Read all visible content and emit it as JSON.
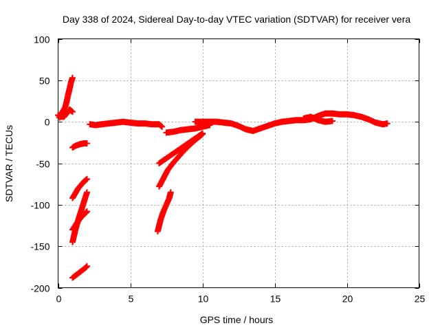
{
  "chart_data": {
    "type": "scatter",
    "title": "Day 338 of 2024, Sidereal Day-to-day VTEC variation (SDTVAR) for receiver vera",
    "xlabel": "GPS time / hours",
    "ylabel": "SDTVAR / TECUs",
    "xlim": [
      0,
      25
    ],
    "ylim": [
      -200,
      100
    ],
    "xticks": [
      0,
      5,
      10,
      15,
      20,
      25
    ],
    "yticks": [
      -200,
      -150,
      -100,
      -50,
      0,
      50,
      100
    ],
    "grid": true,
    "marker": "+",
    "color": "#ff0000",
    "series": [
      {
        "name": "arc-main",
        "x": [
          2.2,
          2.6,
          3.0,
          3.5,
          4.0,
          4.5,
          5.0,
          5.5,
          6.0,
          6.5,
          7.0,
          7.2
        ],
        "y": [
          -3,
          -4,
          -3,
          -2,
          -1,
          0,
          -1,
          -2,
          -2,
          -3,
          -3,
          -6
        ]
      },
      {
        "name": "arc-mid",
        "x": [
          9.5,
          10.0,
          10.5,
          11.0,
          11.5,
          12.0,
          12.5,
          13.0,
          13.5,
          14.0,
          14.5,
          15.0
        ],
        "y": [
          0,
          0,
          0,
          0,
          -1,
          -2,
          -5,
          -9,
          -11,
          -8,
          -5,
          -2
        ]
      },
      {
        "name": "arc-late",
        "x": [
          15.0,
          15.5,
          16.0,
          16.5,
          17.0,
          17.5,
          18.0,
          18.5,
          19.0,
          19.5,
          20.0,
          20.5,
          21.0,
          21.5,
          22.0,
          22.5,
          22.8
        ],
        "y": [
          -2,
          0,
          1,
          2,
          2,
          3,
          7,
          10,
          10,
          9,
          9,
          8,
          6,
          3,
          -1,
          -3,
          -2
        ]
      },
      {
        "name": "arc-dip",
        "x": [
          17.0,
          17.5,
          18.0,
          18.5,
          19.0
        ],
        "y": [
          4,
          6,
          2,
          0,
          1
        ]
      },
      {
        "name": "arc-rise",
        "x": [
          7.5,
          8.0,
          8.5,
          9.0,
          9.5,
          10.0,
          10.5
        ],
        "y": [
          -13,
          -12,
          -10,
          -9,
          -8,
          -6,
          -4
        ]
      },
      {
        "name": "arc-start",
        "x": [
          0.0,
          0.2,
          0.4,
          0.6,
          0.8,
          1.0
        ],
        "y": [
          8,
          6,
          6,
          10,
          15,
          12
        ]
      },
      {
        "name": "arc-spike",
        "x": [
          0.1,
          0.3,
          0.5,
          0.6,
          0.7,
          0.8,
          0.9,
          1.0
        ],
        "y": [
          5,
          12,
          18,
          25,
          33,
          40,
          48,
          53
        ]
      },
      {
        "name": "arc-a",
        "x": [
          1.0,
          1.2,
          1.5,
          1.8,
          2.0
        ],
        "y": [
          -31,
          -29,
          -27,
          -26,
          -26
        ]
      },
      {
        "name": "arc-b",
        "x": [
          1.0,
          1.2,
          1.4,
          1.6,
          1.8,
          2.0
        ],
        "y": [
          -92,
          -86,
          -80,
          -76,
          -72,
          -69
        ]
      },
      {
        "name": "arc-c",
        "x": [
          1.0,
          1.2,
          1.4,
          1.6,
          1.8,
          2.0
        ],
        "y": [
          -145,
          -130,
          -118,
          -107,
          -96,
          -85
        ]
      },
      {
        "name": "arc-d",
        "x": [
          1.0,
          1.3,
          1.6,
          1.9,
          2.0
        ],
        "y": [
          -130,
          -122,
          -115,
          -110,
          -108
        ]
      },
      {
        "name": "arc-e",
        "x": [
          1.0,
          1.3,
          1.6,
          1.9,
          2.0
        ],
        "y": [
          -188,
          -184,
          -180,
          -176,
          -174
        ]
      },
      {
        "name": "arc-f",
        "x": [
          7.0,
          7.5,
          8.0,
          8.5,
          9.0,
          9.5,
          10.0
        ],
        "y": [
          -50,
          -44,
          -38,
          -32,
          -26,
          -20,
          -14
        ]
      },
      {
        "name": "arc-g",
        "x": [
          7.0,
          7.3,
          7.6,
          8.0,
          8.5,
          9.0,
          9.5,
          10.0
        ],
        "y": [
          -78,
          -68,
          -58,
          -49,
          -39,
          -30,
          -22,
          -15
        ]
      },
      {
        "name": "arc-h",
        "x": [
          6.9,
          7.1,
          7.3,
          7.5,
          7.7,
          7.8
        ],
        "y": [
          -132,
          -118,
          -108,
          -100,
          -92,
          -85
        ]
      }
    ]
  }
}
